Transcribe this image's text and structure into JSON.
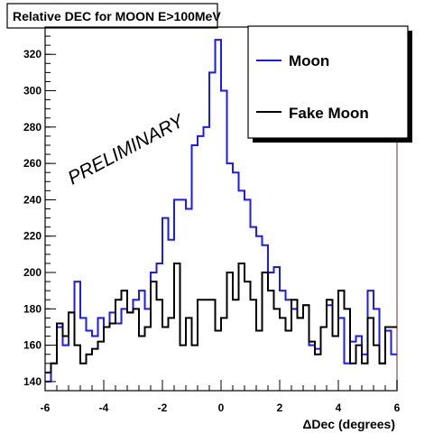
{
  "chart_data": {
    "type": "line",
    "title": "Relative DEC for MOON E>100MeV",
    "watermark": "PRELIMINARY",
    "xlabel": "ΔDec (degrees)",
    "ylabel": "",
    "xlim": [
      -6,
      6
    ],
    "ylim": [
      135,
      335
    ],
    "x_ticks": [
      -6,
      -4,
      -2,
      0,
      2,
      4,
      6
    ],
    "y_ticks": [
      140,
      160,
      180,
      200,
      220,
      240,
      260,
      280,
      300,
      320
    ],
    "x_tick_labels": [
      "-6",
      "-4",
      "-2",
      "0",
      "2",
      "4",
      "6"
    ],
    "y_tick_labels": [
      "140",
      "160",
      "180",
      "200",
      "220",
      "240",
      "260",
      "280",
      "300",
      "320"
    ],
    "legend_position": "top-right",
    "grid": false,
    "bin_edges": [
      -6,
      6
    ],
    "series": [
      {
        "name": "Moon",
        "color": "#1a1aff",
        "values": [
          140,
          150,
          170,
          160,
          178,
          195,
          175,
          168,
          165,
          175,
          170,
          178,
          172,
          180,
          178,
          185,
          190,
          180,
          200,
          205,
          230,
          218,
          240,
          240,
          235,
          270,
          275,
          280,
          310,
          328,
          300,
          260,
          255,
          245,
          240,
          225,
          220,
          215,
          200,
          203,
          190,
          185,
          180,
          175,
          182,
          160,
          158,
          170,
          182,
          165,
          175,
          150,
          162,
          165,
          155,
          190,
          180,
          150,
          168,
          155
        ]
      },
      {
        "name": "Fake Moon",
        "color": "#000000",
        "values": [
          145,
          150,
          172,
          165,
          178,
          160,
          150,
          155,
          158,
          162,
          170,
          172,
          185,
          190,
          178,
          180,
          165,
          170,
          195,
          185,
          170,
          175,
          205,
          160,
          175,
          160,
          185,
          185,
          185,
          168,
          175,
          200,
          185,
          205,
          195,
          185,
          168,
          200,
          190,
          180,
          175,
          168,
          185,
          175,
          182,
          162,
          155,
          170,
          185,
          165,
          190,
          180,
          150,
          160,
          150,
          175,
          160,
          150,
          170,
          170
        ]
      }
    ]
  }
}
